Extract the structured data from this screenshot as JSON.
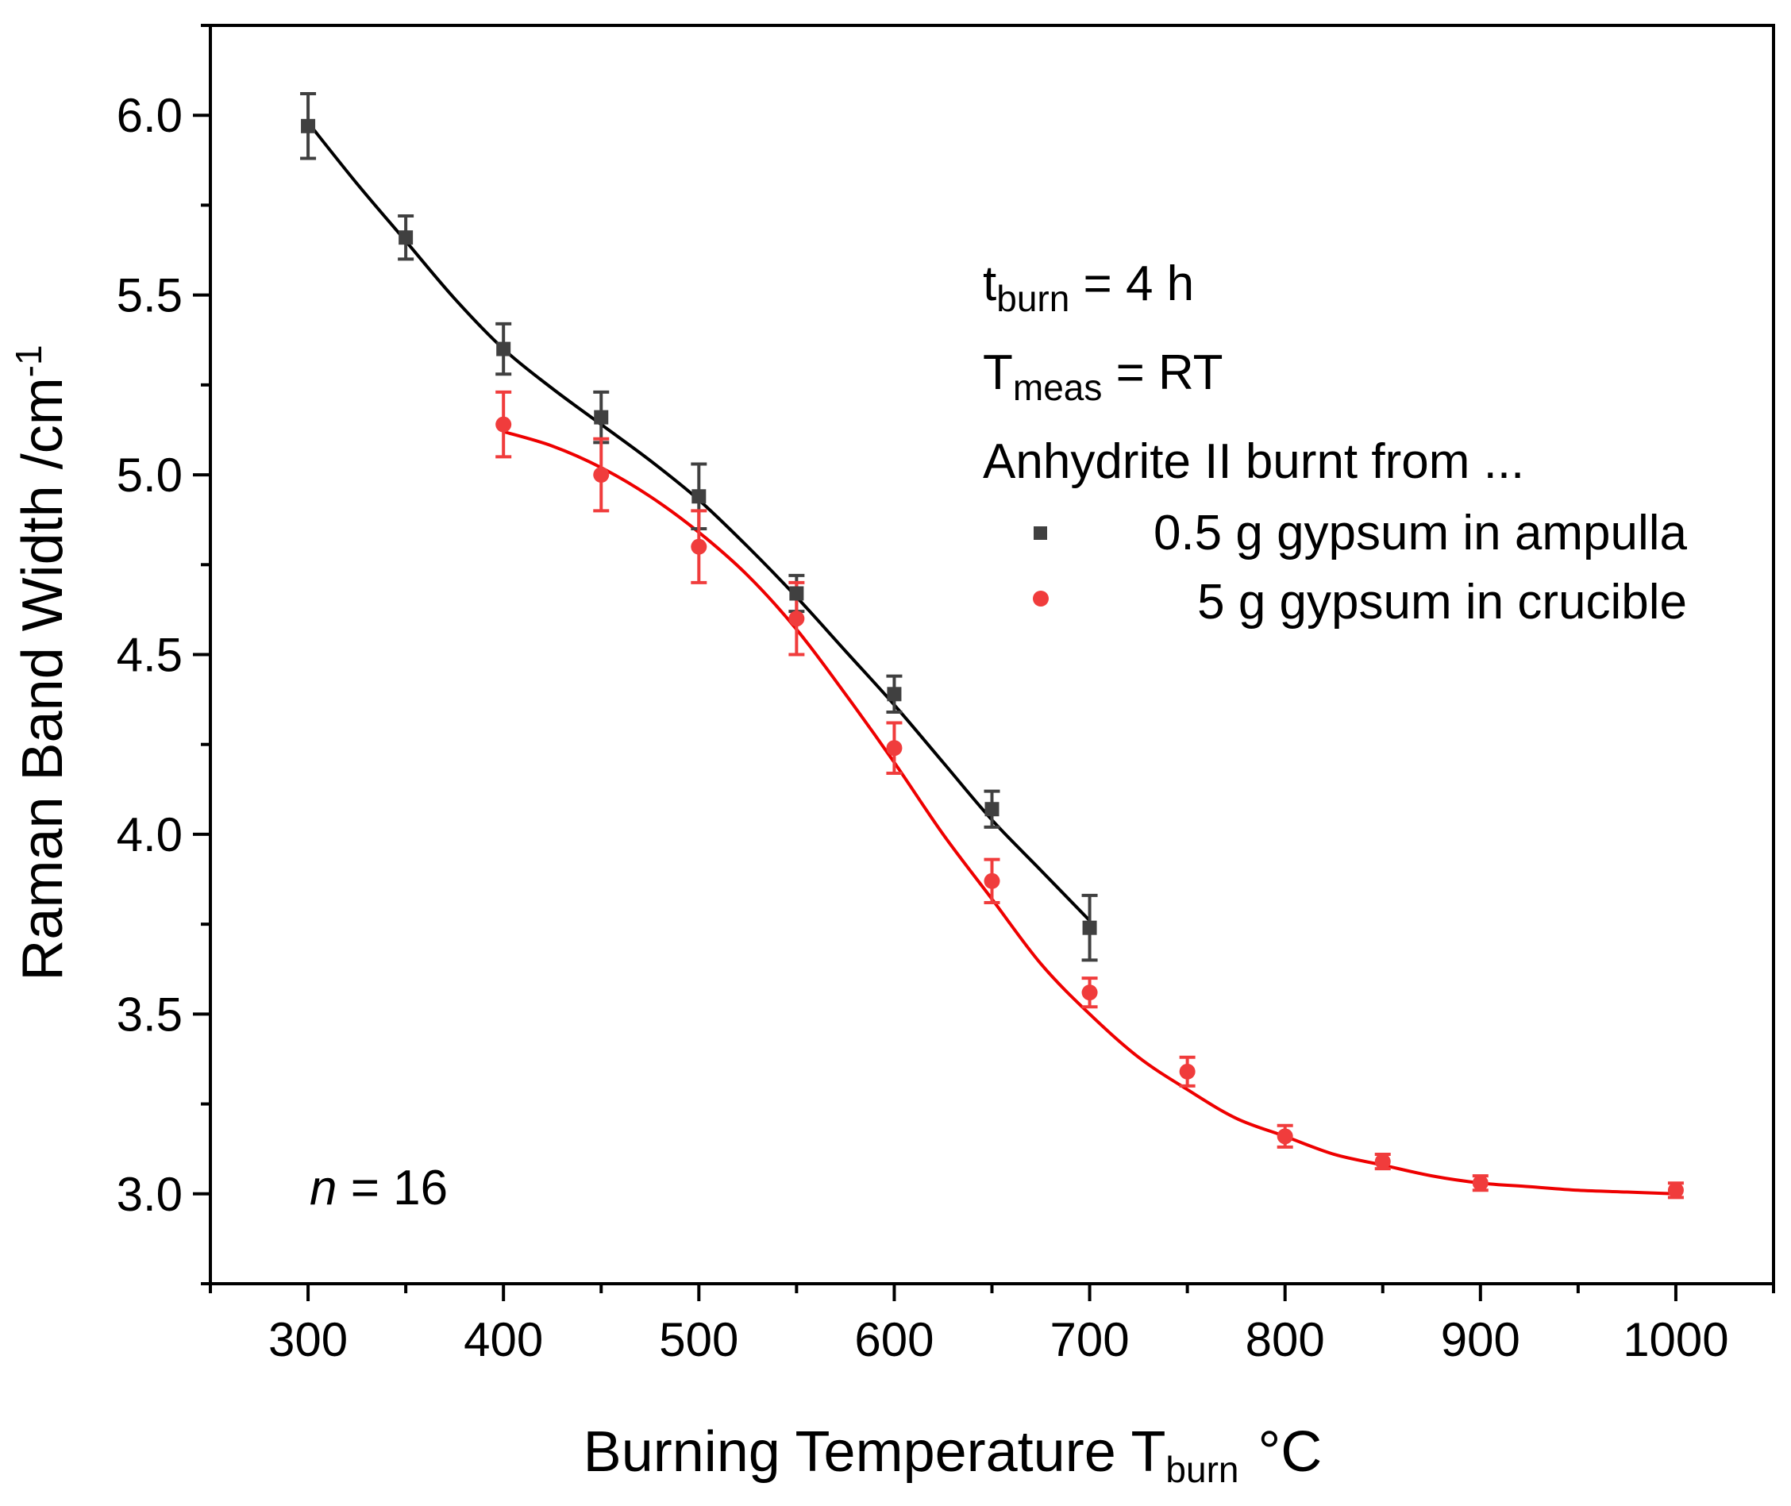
{
  "chart_data": {
    "type": "scatter",
    "xlabel": "Burning Temperature T",
    "xlabel_sub": "burn",
    "xlabel_unit": "°C",
    "ylabel": "Raman Band Width /cm",
    "ylabel_sup": "-1",
    "xlim": [
      250,
      1050
    ],
    "ylim": [
      2.75,
      6.25
    ],
    "xticks": [
      300,
      400,
      500,
      600,
      700,
      800,
      900,
      1000
    ],
    "xtick_labels": [
      "300",
      "400",
      "500",
      "600",
      "700",
      "800",
      "900",
      "1000"
    ],
    "yticks": [
      3.0,
      3.5,
      4.0,
      4.5,
      5.0,
      5.5,
      6.0
    ],
    "ytick_labels": [
      "3.0",
      "3.5",
      "4.0",
      "4.5",
      "5.0",
      "5.5",
      "6.0"
    ],
    "annotations": {
      "tburn_main": "t",
      "tburn_sub": "burn",
      "tburn_rest": " = 4 h",
      "tmeas_main": "T",
      "tmeas_sub": "meas",
      "tmeas_rest": " = RT",
      "legend_heading": "Anhydrite II burnt from ...",
      "n_italic": "n",
      "n_rest": " = 16"
    },
    "series": [
      {
        "name": "0.5 g gypsum in ampulla",
        "color": "#404040",
        "fit_color": "#000000",
        "marker": "square",
        "x": [
          300,
          350,
          400,
          450,
          500,
          550,
          600,
          650,
          700
        ],
        "y": [
          5.97,
          5.66,
          5.35,
          5.16,
          4.94,
          4.67,
          4.39,
          4.07,
          3.74
        ],
        "err": [
          0.09,
          0.06,
          0.07,
          0.07,
          0.09,
          0.05,
          0.05,
          0.05,
          0.09
        ],
        "fit_x": [
          300,
          325,
          350,
          375,
          400,
          425,
          450,
          475,
          500,
          525,
          550,
          575,
          600,
          625,
          650,
          675,
          700
        ],
        "fit_y": [
          5.98,
          5.81,
          5.65,
          5.49,
          5.35,
          5.24,
          5.14,
          5.04,
          4.93,
          4.8,
          4.66,
          4.51,
          4.36,
          4.2,
          4.04,
          3.9,
          3.76
        ]
      },
      {
        "name": "5 g gypsum in crucible",
        "color": "#f03c3c",
        "fit_color": "#ee0000",
        "marker": "circle",
        "x": [
          400,
          450,
          500,
          550,
          600,
          650,
          700,
          750,
          800,
          850,
          900,
          1000
        ],
        "y": [
          5.14,
          5.0,
          4.8,
          4.6,
          4.24,
          3.87,
          3.56,
          3.34,
          3.16,
          3.09,
          3.03,
          3.01
        ],
        "err": [
          0.09,
          0.1,
          0.1,
          0.1,
          0.07,
          0.06,
          0.04,
          0.04,
          0.03,
          0.02,
          0.02,
          0.02
        ],
        "fit_x": [
          400,
          425,
          450,
          475,
          500,
          525,
          550,
          575,
          600,
          625,
          650,
          675,
          700,
          725,
          750,
          775,
          800,
          825,
          850,
          875,
          900,
          925,
          950,
          975,
          1000
        ],
        "fit_y": [
          5.12,
          5.08,
          5.02,
          4.94,
          4.84,
          4.72,
          4.57,
          4.39,
          4.2,
          4.0,
          3.82,
          3.64,
          3.5,
          3.38,
          3.29,
          3.21,
          3.16,
          3.11,
          3.08,
          3.05,
          3.03,
          3.02,
          3.01,
          3.005,
          3.0
        ]
      }
    ]
  }
}
